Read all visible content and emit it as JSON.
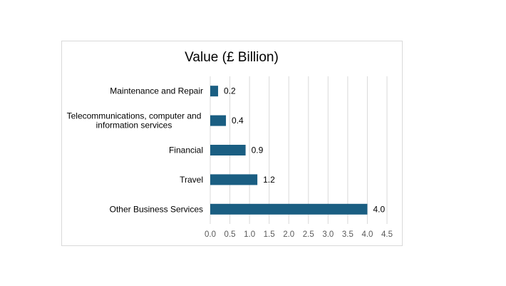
{
  "chart_data": {
    "type": "bar",
    "orientation": "horizontal",
    "title": "Value (£ Billion)",
    "categories": [
      [
        "Maintenance and Repair"
      ],
      [
        "Telecommunications, computer and",
        "information services"
      ],
      [
        "Financial"
      ],
      [
        "Travel"
      ],
      [
        "Other Business Services"
      ]
    ],
    "values": [
      0.2,
      0.4,
      0.9,
      1.2,
      4.0
    ],
    "data_labels": [
      "0.2",
      "0.4",
      "0.9",
      "1.2",
      "4.0"
    ],
    "xlim": [
      0,
      4.5
    ],
    "x_ticks": [
      "0.0",
      "0.5",
      "1.0",
      "1.5",
      "2.0",
      "2.5",
      "3.0",
      "3.5",
      "4.0",
      "4.5"
    ],
    "xlabel": "",
    "ylabel": "",
    "grid": "vertical",
    "bar_color": "#1a5e82",
    "legend": "none"
  }
}
